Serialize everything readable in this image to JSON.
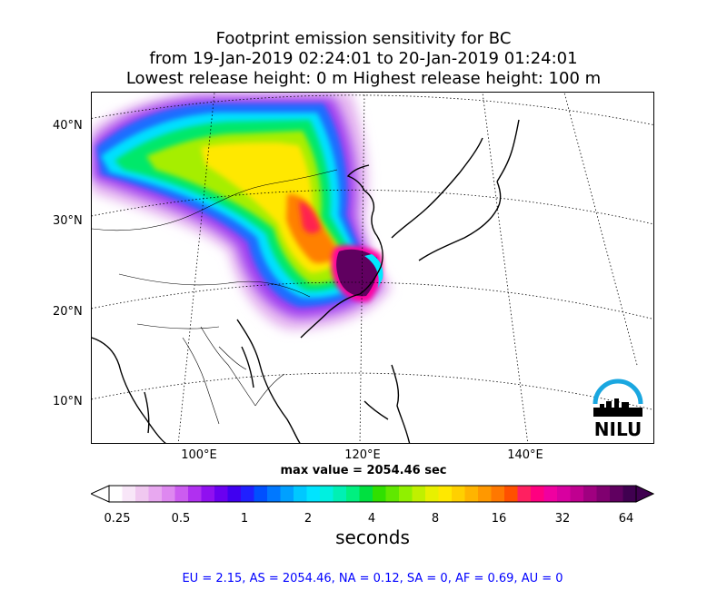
{
  "title": {
    "line1": "Footprint emission sensitivity for BC",
    "line2": "from 19-Jan-2019 02:24:01 to 20-Jan-2019 01:24:01",
    "line3": "Lowest release height: 0 m      Highest release height: 100 m"
  },
  "map": {
    "lat_labels": [
      "40°N",
      "30°N",
      "20°N",
      "10°N"
    ],
    "lon_labels": [
      "100°E",
      "120°E",
      "140°E"
    ],
    "max_value_text": "max value = 2054.46 sec",
    "logo_text": "NILU"
  },
  "colorbar": {
    "tick_labels": [
      "0.25",
      "0.5",
      "1",
      "2",
      "4",
      "8",
      "16",
      "32",
      "64"
    ],
    "unit": "seconds",
    "colors": [
      "#ffffff",
      "#f8e6f8",
      "#f0c8f0",
      "#e8a8f0",
      "#de88f0",
      "#cc5cf0",
      "#b030f0",
      "#9010f0",
      "#6a00f0",
      "#4000f0",
      "#2020ff",
      "#0050ff",
      "#0078ff",
      "#00a0ff",
      "#00c8ff",
      "#00e4ff",
      "#00f0e0",
      "#00f0b4",
      "#00f080",
      "#00e040",
      "#30e000",
      "#60e800",
      "#90f000",
      "#c0f000",
      "#e8f000",
      "#ffe800",
      "#ffd000",
      "#ffb400",
      "#ff9800",
      "#ff7800",
      "#ff5000",
      "#ff2060",
      "#ff0080",
      "#f000a0",
      "#d800a0",
      "#c00090",
      "#a00080",
      "#800070",
      "#600060",
      "#400050"
    ]
  },
  "region_summary": "EU = 2.15,  AS = 2054.46,  NA = 0.12,  SA = 0,  AF = 0.69,  AU = 0"
}
